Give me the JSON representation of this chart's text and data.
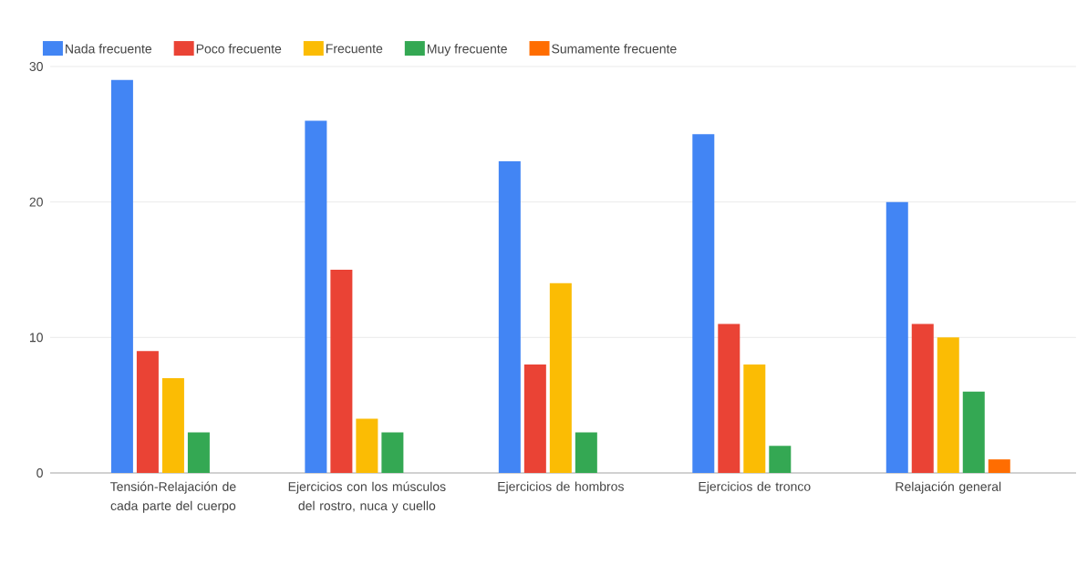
{
  "chart_data": {
    "type": "bar",
    "categories": [
      "Tensión-Relajación de cada parte del cuerpo",
      "Ejercicios con los músculos del rostro, nuca y cuello",
      "Ejercicios de hombros",
      "Ejercicios de tronco",
      "Relajación general"
    ],
    "series": [
      {
        "name": "Nada frecuente",
        "color": "#4285f4",
        "values": [
          29,
          26,
          23,
          25,
          20
        ]
      },
      {
        "name": "Poco frecuente",
        "color": "#ea4335",
        "values": [
          9,
          15,
          8,
          11,
          11
        ]
      },
      {
        "name": "Frecuente",
        "color": "#fbbc04",
        "values": [
          7,
          4,
          14,
          8,
          10
        ]
      },
      {
        "name": "Muy frecuente",
        "color": "#34a853",
        "values": [
          3,
          3,
          3,
          2,
          6
        ]
      },
      {
        "name": "Sumamente frecuente",
        "color": "#ff6d01",
        "values": [
          0,
          0,
          0,
          0,
          1
        ]
      }
    ],
    "ylim": [
      0,
      30
    ],
    "yticks": [
      0,
      10,
      20,
      30
    ],
    "grid": "y",
    "legend": "top"
  }
}
